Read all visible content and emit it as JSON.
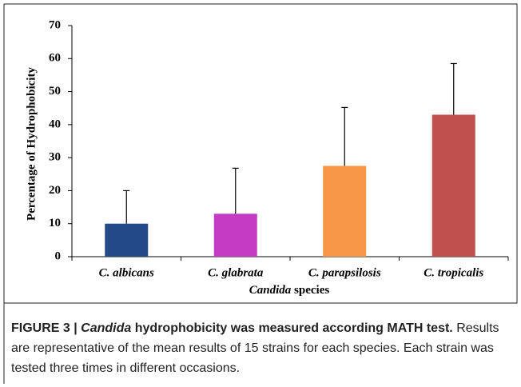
{
  "chart_data": {
    "type": "bar",
    "categories": [
      "C. albicans",
      "C. glabrata",
      "C. parapsilosis",
      "C. tropicalis"
    ],
    "values": [
      10,
      13,
      27.5,
      43
    ],
    "errors": [
      10,
      13.8,
      17.7,
      15.5
    ],
    "colors": [
      "#234a86",
      "#c43cc4",
      "#f79646",
      "#c0504d"
    ],
    "ylim": [
      0,
      70
    ],
    "yticks": [
      0,
      10,
      20,
      30,
      40,
      50,
      60,
      70
    ],
    "y_label": "Percentage of Hydrophobicity",
    "x_label_italic": "Candida",
    "x_label_rest": "species",
    "grid": false
  },
  "caption": {
    "label": "FIGURE 3 |",
    "title_italic": "Candida",
    "title_rest": "hydrophobicity was measured according MATH test.",
    "text": "Results are representative of the mean results of 15 strains for each species. Each strain was tested three times in different occasions."
  }
}
